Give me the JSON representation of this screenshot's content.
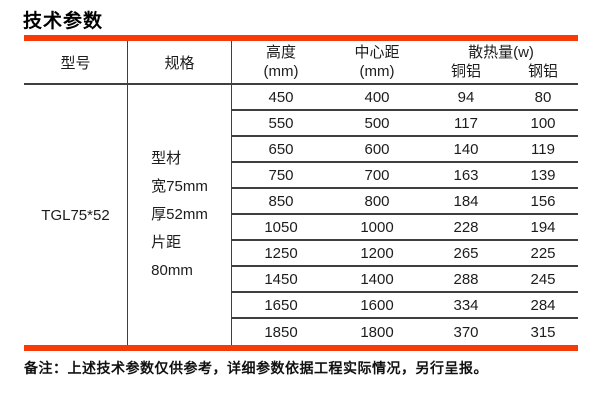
{
  "title": "技术参数",
  "accent_color": "#f73a08",
  "table": {
    "headers": {
      "model": "型号",
      "spec": "规格",
      "height_line1": "高度",
      "height_line2": "(mm)",
      "center_line1": "中心距",
      "center_line2": "(mm)",
      "heat": "散热量(w)",
      "copper_aluminum": "铜铝",
      "steel_aluminum": "钢铝"
    },
    "model_value": "TGL75*52",
    "spec_lines": [
      "型材",
      "宽75mm",
      "厚52mm",
      "片距",
      "80mm"
    ],
    "rows": [
      [
        "450",
        "400",
        "94",
        "80"
      ],
      [
        "550",
        "500",
        "117",
        "100"
      ],
      [
        "650",
        "600",
        "140",
        "119"
      ],
      [
        "750",
        "700",
        "163",
        "139"
      ],
      [
        "850",
        "800",
        "184",
        "156"
      ],
      [
        "1050",
        "1000",
        "228",
        "194"
      ],
      [
        "1250",
        "1200",
        "265",
        "225"
      ],
      [
        "1450",
        "1400",
        "288",
        "245"
      ],
      [
        "1650",
        "1600",
        "334",
        "284"
      ],
      [
        "1850",
        "1800",
        "370",
        "315"
      ]
    ]
  },
  "note": "备注：上述技术参数仅供参考，详细参数依据工程实际情况，另行呈报。"
}
